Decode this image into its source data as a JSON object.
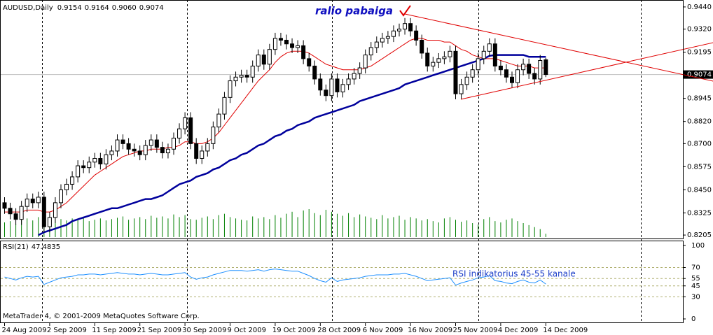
{
  "chart_data": [
    {
      "type": "candlestick",
      "title": "AUDUSD,Daily",
      "ohlc_labels": [
        "0.9154",
        "0.9164",
        "0.9060",
        "0.9074"
      ],
      "annotations": [
        "ralio pabaiga"
      ],
      "categories": [
        "24 Aug 2009",
        null,
        null,
        null,
        null,
        null,
        null,
        null,
        "2 Sep 2009",
        null,
        null,
        null,
        null,
        null,
        null,
        null,
        "11 Sep 2009",
        null,
        null,
        null,
        null,
        null,
        null,
        null,
        "21 Sep 2009",
        null,
        null,
        null,
        null,
        null,
        null,
        null,
        "30 Sep 2009",
        null,
        null,
        null,
        null,
        null,
        null,
        null,
        "9 Oct 2009",
        null,
        null,
        null,
        null,
        null,
        null,
        null,
        "19 Oct 2009",
        null,
        null,
        null,
        null,
        null,
        null,
        null,
        "28 Oct 2009",
        null,
        null,
        null,
        null,
        null,
        null,
        null,
        "6 Nov 2009",
        null,
        null,
        null,
        null,
        null,
        null,
        null,
        "16 Nov 2009",
        null,
        null,
        null,
        null,
        null,
        null,
        null,
        "25 Nov 2009",
        null,
        null,
        null,
        null,
        null,
        null,
        null,
        "4 Dec 2009",
        null,
        null,
        null,
        null,
        null,
        null,
        null,
        "14 Dec 2009"
      ],
      "open": [
        0.838,
        0.835,
        0.832,
        0.829,
        0.836,
        0.84,
        0.838,
        0.841,
        0.825,
        0.83,
        0.838,
        0.845,
        0.848,
        0.852,
        0.858,
        0.857,
        0.86,
        0.862,
        0.859,
        0.864,
        0.866,
        0.872,
        0.87,
        0.867,
        0.866,
        0.864,
        0.869,
        0.872,
        0.868,
        0.865,
        0.867,
        0.873,
        0.878,
        0.884,
        0.87,
        0.862,
        0.866,
        0.87,
        0.879,
        0.886,
        0.895,
        0.904,
        0.906,
        0.907,
        0.906,
        0.912,
        0.918,
        0.913,
        0.921,
        0.927,
        0.926,
        0.924,
        0.922,
        0.923,
        0.916,
        0.912,
        0.905,
        0.899,
        0.896,
        0.905,
        0.898,
        0.902,
        0.905,
        0.908,
        0.911,
        0.918,
        0.922,
        0.925,
        0.927,
        0.928,
        0.931,
        0.932,
        0.935,
        0.931,
        0.926,
        0.919,
        0.912,
        0.914,
        0.916,
        0.917,
        0.92,
        0.897,
        0.902,
        0.906,
        0.91,
        0.916,
        0.92,
        0.924,
        0.912,
        0.91,
        0.906,
        0.903,
        0.91,
        0.913,
        0.908,
        0.905,
        0.9154
      ],
      "high": [
        0.841,
        0.838,
        0.835,
        0.839,
        0.843,
        0.843,
        0.844,
        0.844,
        0.833,
        0.841,
        0.848,
        0.851,
        0.855,
        0.861,
        0.861,
        0.863,
        0.865,
        0.865,
        0.867,
        0.869,
        0.875,
        0.875,
        0.873,
        0.87,
        0.869,
        0.872,
        0.875,
        0.875,
        0.871,
        0.87,
        0.876,
        0.881,
        0.887,
        0.887,
        0.873,
        0.869,
        0.873,
        0.882,
        0.889,
        0.898,
        0.907,
        0.909,
        0.91,
        0.91,
        0.915,
        0.921,
        0.921,
        0.924,
        0.93,
        0.93,
        0.929,
        0.927,
        0.926,
        0.926,
        0.919,
        0.915,
        0.908,
        0.902,
        0.908,
        0.908,
        0.905,
        0.908,
        0.911,
        0.914,
        0.921,
        0.925,
        0.928,
        0.93,
        0.931,
        0.934,
        0.935,
        0.938,
        0.938,
        0.934,
        0.929,
        0.922,
        0.917,
        0.919,
        0.92,
        0.923,
        0.923,
        0.905,
        0.909,
        0.913,
        0.919,
        0.923,
        0.927,
        0.927,
        0.915,
        0.913,
        0.909,
        0.913,
        0.916,
        0.916,
        0.911,
        0.918,
        0.9164
      ],
      "low": [
        0.832,
        0.829,
        0.826,
        0.826,
        0.833,
        0.835,
        0.835,
        0.822,
        0.822,
        0.827,
        0.835,
        0.842,
        0.845,
        0.849,
        0.854,
        0.854,
        0.857,
        0.856,
        0.856,
        0.861,
        0.863,
        0.867,
        0.864,
        0.863,
        0.861,
        0.861,
        0.866,
        0.865,
        0.862,
        0.862,
        0.864,
        0.87,
        0.875,
        0.867,
        0.859,
        0.859,
        0.863,
        0.867,
        0.876,
        0.883,
        0.892,
        0.901,
        0.903,
        0.903,
        0.903,
        0.909,
        0.91,
        0.91,
        0.918,
        0.923,
        0.921,
        0.919,
        0.919,
        0.913,
        0.909,
        0.902,
        0.896,
        0.893,
        0.893,
        0.895,
        0.895,
        0.899,
        0.902,
        0.905,
        0.908,
        0.915,
        0.919,
        0.922,
        0.924,
        0.925,
        0.928,
        0.929,
        0.928,
        0.923,
        0.916,
        0.909,
        0.909,
        0.911,
        0.913,
        0.914,
        0.894,
        0.894,
        0.899,
        0.903,
        0.907,
        0.913,
        0.917,
        0.909,
        0.907,
        0.903,
        0.9,
        0.9,
        0.907,
        0.905,
        0.902,
        0.902,
        0.906
      ],
      "close": [
        0.835,
        0.832,
        0.829,
        0.836,
        0.84,
        0.838,
        0.841,
        0.825,
        0.83,
        0.838,
        0.845,
        0.848,
        0.852,
        0.858,
        0.857,
        0.86,
        0.862,
        0.859,
        0.864,
        0.866,
        0.872,
        0.87,
        0.867,
        0.866,
        0.864,
        0.869,
        0.872,
        0.868,
        0.865,
        0.867,
        0.873,
        0.878,
        0.884,
        0.87,
        0.862,
        0.866,
        0.87,
        0.879,
        0.886,
        0.895,
        0.904,
        0.906,
        0.907,
        0.906,
        0.912,
        0.918,
        0.913,
        0.921,
        0.927,
        0.926,
        0.924,
        0.922,
        0.923,
        0.916,
        0.912,
        0.905,
        0.899,
        0.896,
        0.905,
        0.898,
        0.902,
        0.905,
        0.908,
        0.911,
        0.918,
        0.922,
        0.925,
        0.927,
        0.928,
        0.931,
        0.932,
        0.935,
        0.931,
        0.926,
        0.919,
        0.912,
        0.914,
        0.916,
        0.917,
        0.92,
        0.897,
        0.902,
        0.906,
        0.91,
        0.916,
        0.92,
        0.924,
        0.912,
        0.91,
        0.906,
        0.903,
        0.91,
        0.913,
        0.908,
        0.905,
        0.915,
        0.9074
      ],
      "overlays": [
        {
          "color": "#e00000",
          "values": [
            0.833,
            0.833,
            0.833,
            0.833,
            0.834,
            0.834,
            0.834,
            0.833,
            0.833,
            0.834,
            0.836,
            0.838,
            0.841,
            0.844,
            0.847,
            0.85,
            0.853,
            0.855,
            0.857,
            0.859,
            0.861,
            0.863,
            0.864,
            0.865,
            0.866,
            0.866,
            0.867,
            0.867,
            0.867,
            0.868,
            0.868,
            0.869,
            0.871,
            0.871,
            0.87,
            0.87,
            0.871,
            0.873,
            0.876,
            0.88,
            0.884,
            0.888,
            0.892,
            0.896,
            0.9,
            0.904,
            0.907,
            0.91,
            0.914,
            0.917,
            0.919,
            0.92,
            0.92,
            0.92,
            0.919,
            0.917,
            0.915,
            0.913,
            0.912,
            0.911,
            0.91,
            0.91,
            0.91,
            0.91,
            0.911,
            0.912,
            0.914,
            0.916,
            0.918,
            0.92,
            0.922,
            0.924,
            0.926,
            0.927,
            0.927,
            0.926,
            0.926,
            0.926,
            0.925,
            0.925,
            0.923,
            0.921,
            0.92,
            0.918,
            0.917,
            0.916,
            0.916,
            0.916,
            0.915,
            0.914,
            0.913,
            0.912,
            0.912,
            0.912,
            0.911,
            0.911,
            0.911
          ]
        },
        {
          "color": "#00009c",
          "values": [
            null,
            null,
            null,
            null,
            null,
            null,
            0.8205,
            0.822,
            0.823,
            0.824,
            0.825,
            0.826,
            0.828,
            0.829,
            0.83,
            0.831,
            0.832,
            0.833,
            0.834,
            0.835,
            0.835,
            0.836,
            0.837,
            0.838,
            0.839,
            0.84,
            0.84,
            0.841,
            0.842,
            0.844,
            0.846,
            0.848,
            0.849,
            0.85,
            0.852,
            0.853,
            0.854,
            0.856,
            0.857,
            0.859,
            0.861,
            0.862,
            0.864,
            0.865,
            0.867,
            0.869,
            0.87,
            0.872,
            0.874,
            0.875,
            0.877,
            0.878,
            0.88,
            0.881,
            0.882,
            0.884,
            0.885,
            0.886,
            0.887,
            0.888,
            0.889,
            0.89,
            0.891,
            0.893,
            0.894,
            0.895,
            0.896,
            0.897,
            0.898,
            0.899,
            0.9,
            0.902,
            0.903,
            0.904,
            0.905,
            0.906,
            0.907,
            0.908,
            0.909,
            0.91,
            0.911,
            0.912,
            0.913,
            0.914,
            0.915,
            0.916,
            0.9175,
            0.918,
            0.918,
            0.918,
            0.918,
            0.918,
            0.918,
            0.917,
            0.917,
            0.917,
            0.917
          ]
        }
      ],
      "volume": {
        "color": "#008000",
        "values": [
          22,
          24,
          20,
          26,
          28,
          25,
          30,
          32,
          28,
          30,
          27,
          25,
          28,
          26,
          30,
          24,
          26,
          28,
          25,
          27,
          29,
          31,
          26,
          28,
          30,
          27,
          32,
          29,
          31,
          28,
          34,
          30,
          33,
          27,
          26,
          29,
          31,
          27,
          33,
          35,
          30,
          28,
          26,
          25,
          31,
          28,
          30,
          27,
          33,
          29,
          35,
          38,
          30,
          40,
          42,
          36,
          33,
          41,
          38,
          35,
          32,
          36,
          30,
          34,
          31,
          29,
          27,
          33,
          28,
          30,
          32,
          26,
          30,
          28,
          25,
          27,
          24,
          22,
          28,
          30,
          26,
          23,
          25,
          21,
          19,
          27,
          30,
          24,
          22,
          26,
          28,
          24,
          21,
          18,
          15,
          12,
          5
        ]
      },
      "ylim": [
        0.8194,
        0.947
      ],
      "yticks": [
        {
          "value": 0.944,
          "label": "0.9440"
        },
        {
          "value": 0.932,
          "label": "0.9320"
        },
        {
          "value": 0.9195,
          "label": "0.9195"
        },
        {
          "value": 0.8945,
          "label": "0.8945"
        },
        {
          "value": 0.882,
          "label": "0.8820"
        },
        {
          "value": 0.87,
          "label": "0.8700"
        },
        {
          "value": 0.8575,
          "label": "0.8575"
        },
        {
          "value": 0.845,
          "label": "0.8450"
        },
        {
          "value": 0.8325,
          "label": "0.8325"
        },
        {
          "value": 0.8205,
          "label": "0.8205"
        }
      ],
      "price_line": {
        "value": 0.9074,
        "label": "0.9074"
      }
    },
    {
      "type": "line",
      "title": "RSI(21)",
      "annotation": "RSI indikatorius 45-55 kanale",
      "credit": "MetaTrader 4, © 2001-2009 MetaQuotes Software Corp.",
      "color": "#1e90ff",
      "values": [
        57,
        55,
        53,
        56,
        58,
        57,
        58,
        47,
        50,
        53,
        56,
        57,
        58,
        60,
        60,
        61,
        61,
        60,
        61,
        62,
        63,
        62,
        61,
        61,
        60,
        61,
        62,
        61,
        60,
        60,
        61,
        62,
        63,
        57,
        54,
        56,
        57,
        60,
        62,
        64,
        66,
        66,
        66,
        65,
        66,
        67,
        65,
        67,
        68,
        67,
        66,
        65,
        65,
        62,
        59,
        55,
        52,
        50,
        56,
        51,
        53,
        54,
        55,
        56,
        58,
        59,
        60,
        60,
        60,
        61,
        61,
        62,
        60,
        58,
        55,
        52,
        53,
        54,
        55,
        56,
        46,
        49,
        51,
        53,
        56,
        57,
        59,
        52,
        51,
        49,
        48,
        51,
        53,
        50,
        49,
        53,
        47.4835
      ],
      "ylim": [
        -5.7,
        105.7
      ],
      "yticks": [
        0,
        30,
        45,
        55,
        70,
        100
      ],
      "levels": [
        30,
        45,
        55,
        70
      ],
      "level_color": "#b0b070"
    }
  ]
}
